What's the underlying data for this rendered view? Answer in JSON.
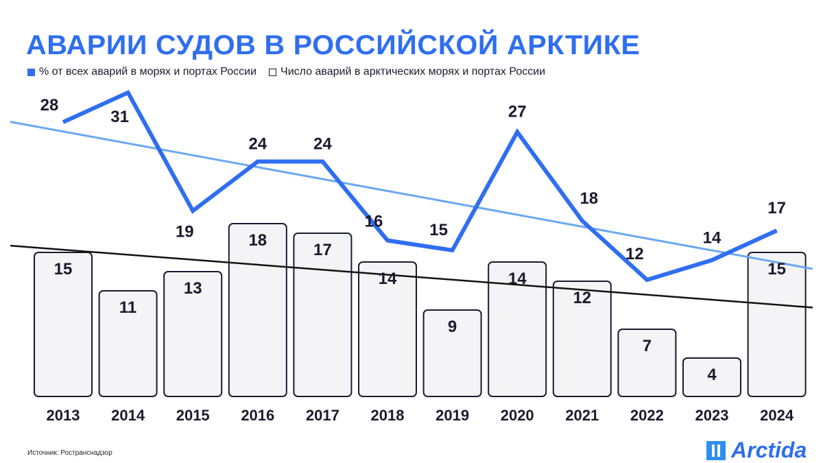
{
  "title": "АВАРИИ СУДОВ В РОССИЙСКОЙ АРКТИКЕ",
  "source": "Источник: Ространснадзор",
  "logo": "Arctida",
  "colors": {
    "line": "#2f6ef0",
    "trend_line": "#6aa8f0",
    "bars_fill": "#f4f4f6",
    "bars_stroke": "#1a1a2e",
    "trend_bars": "#111111"
  },
  "chart_data": {
    "type": "bar+line",
    "categories": [
      "2013",
      "2014",
      "2015",
      "2016",
      "2017",
      "2018",
      "2019",
      "2020",
      "2021",
      "2022",
      "2023",
      "2024"
    ],
    "series": [
      {
        "name": "% от всех аварий в морях и портах России",
        "type": "line",
        "values": [
          28,
          31,
          19,
          24,
          24,
          16,
          15,
          27,
          18,
          12,
          14,
          17
        ],
        "trendline": true
      },
      {
        "name": "Число аварий в арктических морях и портах России",
        "type": "bar",
        "values": [
          15,
          11,
          13,
          18,
          17,
          14,
          9,
          14,
          12,
          7,
          4,
          15
        ],
        "trendline": true
      }
    ],
    "legend": "top-left",
    "grid": false
  }
}
